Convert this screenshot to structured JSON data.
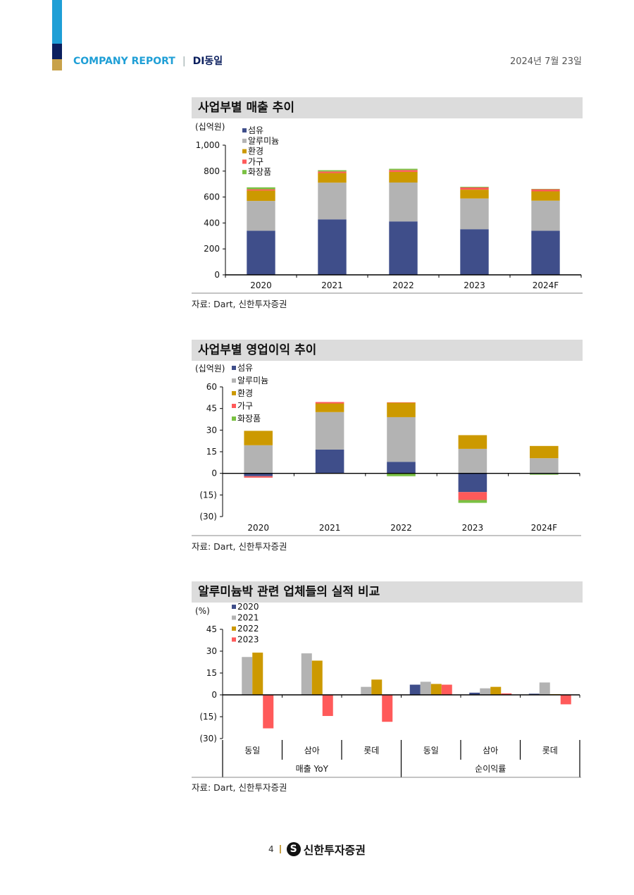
{
  "header": {
    "company_report": "COMPANY REPORT",
    "separator": "|",
    "company_name": "DI동일",
    "date": "2024년 7월 23일",
    "colors": {
      "blue": "#1f9fd6",
      "navy": "#0b1f5e",
      "gold": "#c8a24a"
    }
  },
  "sections": [
    {
      "title": "사업부별 매출 추이",
      "source": "자료: Dart, 신한투자증권"
    },
    {
      "title": "사업부별 영업이익 추이",
      "source": "자료: Dart, 신한투자증권"
    },
    {
      "title": "알루미늄박 관련 업체들의 실적 비교",
      "source": "자료: Dart, 신한투자증권"
    }
  ],
  "footer": {
    "page_number": "4",
    "separator": "I",
    "logo_icon": "shinhan-logo-icon",
    "brand": "신한투자증권"
  },
  "chart_data": [
    {
      "type": "bar",
      "stacked": true,
      "unit_label": "(십억원)",
      "categories": [
        "2020",
        "2021",
        "2022",
        "2023",
        "2024F"
      ],
      "ylim": [
        0,
        1000
      ],
      "yticks": [
        0,
        200,
        400,
        600,
        800,
        1000
      ],
      "ytick_labels": [
        "0",
        "200",
        "400",
        "600",
        "800",
        "1,000"
      ],
      "legend_position": "top-left",
      "series": [
        {
          "name": "섬유",
          "color": "#3f4e8a",
          "values": [
            340,
            428,
            412,
            352,
            340
          ]
        },
        {
          "name": "알루미늄",
          "color": "#b3b3b3",
          "values": [
            230,
            283,
            300,
            237,
            232
          ]
        },
        {
          "name": "환경",
          "color": "#cc9900",
          "values": [
            80,
            74,
            82,
            68,
            72
          ]
        },
        {
          "name": "가구",
          "color": "#ff5a5a",
          "values": [
            10,
            12,
            14,
            17,
            16
          ]
        },
        {
          "name": "화장품",
          "color": "#7ac143",
          "values": [
            15,
            10,
            10,
            5,
            3
          ]
        }
      ]
    },
    {
      "type": "bar",
      "stacked": true,
      "unit_label": "(십억원)",
      "categories": [
        "2020",
        "2021",
        "2022",
        "2023",
        "2024F"
      ],
      "ylim": [
        -30,
        60
      ],
      "yticks": [
        -30,
        -15,
        0,
        15,
        30,
        45,
        60
      ],
      "ytick_labels": [
        "(30)",
        "(15)",
        "0",
        "15",
        "30",
        "45",
        "60"
      ],
      "legend_position": "top-left",
      "series": [
        {
          "name": "섬유",
          "color": "#3f4e8a",
          "values": [
            -2,
            16.5,
            8,
            -13,
            -0.5
          ]
        },
        {
          "name": "알루미늄",
          "color": "#b3b3b3",
          "values": [
            19.5,
            26,
            31,
            17,
            10.5
          ]
        },
        {
          "name": "환경",
          "color": "#cc9900",
          "values": [
            10,
            6,
            10,
            9.5,
            8.5
          ]
        },
        {
          "name": "가구",
          "color": "#ff5a5a",
          "values": [
            -1,
            1,
            0.3,
            -5.5,
            0
          ]
        },
        {
          "name": "화장품",
          "color": "#7ac143",
          "values": [
            0,
            0,
            -2,
            -2,
            -0.5
          ]
        }
      ]
    },
    {
      "type": "bar",
      "stacked": false,
      "unit_label": "(%)",
      "categories": [
        "동일",
        "삼아",
        "롯데",
        "동일",
        "삼아",
        "롯데"
      ],
      "groups": [
        {
          "label": "매출 YoY",
          "span": 3
        },
        {
          "label": "순이익률",
          "span": 3
        }
      ],
      "ylim": [
        -30,
        45
      ],
      "yticks": [
        -30,
        -15,
        0,
        15,
        30,
        45
      ],
      "ytick_labels": [
        "(30)",
        "(15)",
        "0",
        "15",
        "30",
        "45"
      ],
      "legend_position": "top-left",
      "series": [
        {
          "name": "2020",
          "color": "#3f4e8a",
          "values": [
            null,
            null,
            null,
            7.0,
            1.5,
            0.8
          ]
        },
        {
          "name": "2021",
          "color": "#b3b3b3",
          "values": [
            26.0,
            28.5,
            5.5,
            9.0,
            4.5,
            8.5
          ]
        },
        {
          "name": "2022",
          "color": "#cc9900",
          "values": [
            29.0,
            23.5,
            10.5,
            7.5,
            5.5,
            0.5
          ]
        },
        {
          "name": "2023",
          "color": "#ff5a5a",
          "values": [
            -23.0,
            -14.5,
            -18.5,
            7.0,
            1.0,
            -6.5
          ]
        }
      ]
    }
  ]
}
